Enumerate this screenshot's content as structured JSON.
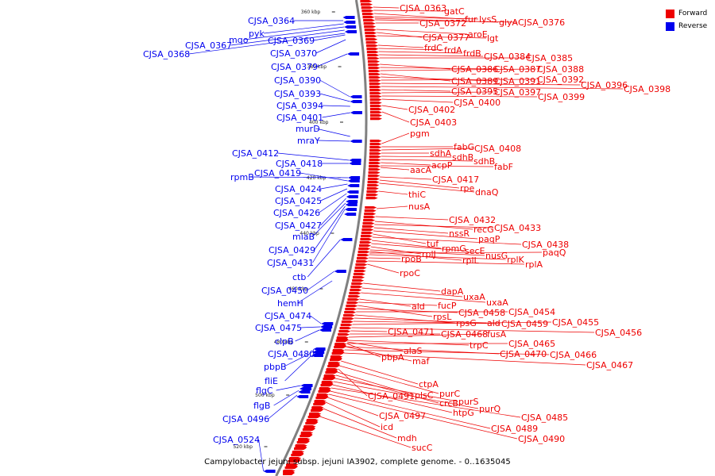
{
  "caption": "Campylobacter jejuni subsp. jejuni IA3902, complete genome. - 0..1635045",
  "legend": [
    {
      "label": "Forward",
      "color": "#ee0000"
    },
    {
      "label": "Reverse",
      "color": "#0000ee"
    }
  ],
  "colors": {
    "forward": "#ee0000",
    "reverse": "#0000ee",
    "backbone": "#808080"
  },
  "ticks": [
    "360 kbp",
    "380 kbp",
    "400 kbp",
    "420 kbp",
    "440 kbp",
    "460 kbp",
    "480 kbp",
    "500 kbp",
    "520 kbp"
  ],
  "reverse_labels": [
    "CJSA_0364",
    "pyk",
    "mqo",
    "CJSA_0367",
    "CJSA_0368",
    "CJSA_0369",
    "CJSA_0370",
    "CJSA_0379",
    "CJSA_0390",
    "CJSA_0393",
    "CJSA_0394",
    "CJSA_0401",
    "murD",
    "mraY",
    "CJSA_0412",
    "CJSA_0418",
    "rpmB",
    "CJSA_0419",
    "CJSA_0424",
    "CJSA_0425",
    "CJSA_0426",
    "CJSA_0427",
    "miaB",
    "CJSA_0429",
    "CJSA_0431",
    "ctb",
    "CJSA_0450",
    "hemH",
    "CJSA_0474",
    "CJSA_0475",
    "clpB",
    "CJSA_0480",
    "pbpB",
    "fliE",
    "flgC",
    "flgB",
    "CJSA_0496",
    "CJSA_0524"
  ],
  "forward_labels": [
    "CJSA_0363",
    "gatC",
    "fur",
    "lysS",
    "glyA",
    "CJSA_0376",
    "CJSA_0372",
    "aroE",
    "CJSA_0377",
    "lgt",
    "frdC",
    "frdA",
    "frdB",
    "CJSA_0384",
    "CJSA_0385",
    "CJSA_0386",
    "CJSA_0387",
    "CJSA_0388",
    "CJSA_0389",
    "CJSA_0391",
    "CJSA_0392",
    "CJSA_0396",
    "CJSA_0398",
    "CJSA_0395",
    "CJSA_0397",
    "CJSA_0399",
    "CJSA_0400",
    "CJSA_0402",
    "CJSA_0403",
    "pgm",
    "fabG",
    "CJSA_0408",
    "sdhA",
    "sdhB",
    "sdhB",
    "acpP",
    "aacA",
    "fabF",
    "CJSA_0417",
    "rpe",
    "dnaQ",
    "thiC",
    "nusA",
    "CJSA_0432",
    "recG",
    "CJSA_0433",
    "nssR",
    "paqP",
    "tuf",
    "CJSA_0438",
    "rpmG",
    "secE",
    "rplJ",
    "nusG",
    "paqQ",
    "rplL",
    "rplK",
    "rpoB",
    "rplA",
    "rpoC",
    "dapA",
    "uxaA",
    "uxaA",
    "ald",
    "fucP",
    "rpsL",
    "CJSA_0458",
    "CJSA_0454",
    "rpsG",
    "ald",
    "CJSA_0459",
    "CJSA_0455",
    "CJSA_0456",
    "CJSA_0471",
    "CJSA_0468",
    "fusA",
    "trpC",
    "CJSA_0465",
    "CJSA_0470",
    "CJSA_0466",
    "CJSA_0467",
    "alaS",
    "pbpA",
    "maf",
    "ctpA",
    "purC",
    "CJSA_0491",
    "plsC",
    "crcB",
    "purS",
    "purQ",
    "htpG",
    "CJSA_0485",
    "CJSA_0497",
    "CJSA_0489",
    "icd",
    "CJSA_0490",
    "mdh",
    "sucC"
  ]
}
